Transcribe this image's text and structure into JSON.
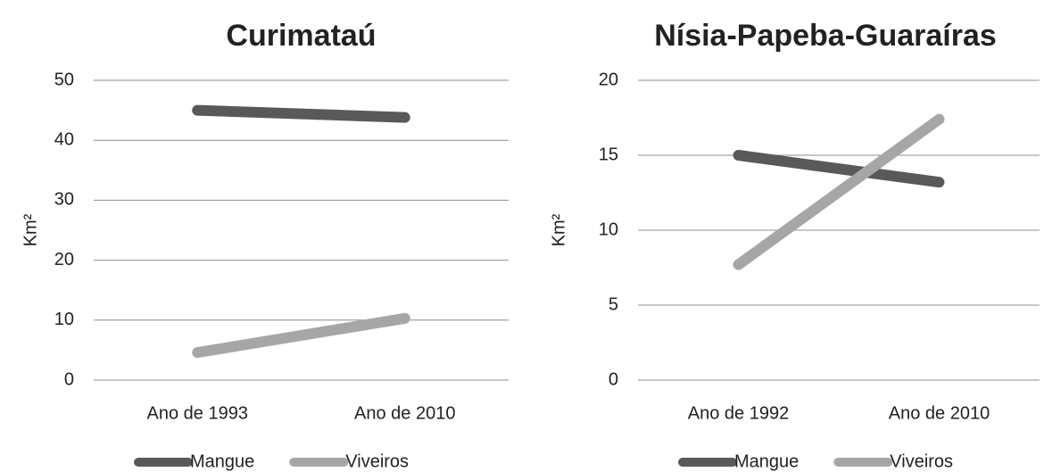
{
  "chart_data": [
    {
      "type": "line",
      "title": "Curimataú",
      "y_label": "Km²",
      "categories": [
        "Ano de 1993",
        "Ano de 2010"
      ],
      "series": [
        {
          "name": "Mangue",
          "color": "#595959",
          "values": [
            45.0,
            43.8
          ]
        },
        {
          "name": "Viveiros",
          "color": "#a6a6a6",
          "values": [
            4.6,
            10.3
          ]
        }
      ],
      "ylim": [
        0,
        50
      ],
      "yticks": [
        0,
        10,
        20,
        30,
        40,
        50
      ],
      "grid": true,
      "legend": "bottom"
    },
    {
      "type": "line",
      "title": "Nísia-Papeba-Guaraíras",
      "y_label": "Km²",
      "categories": [
        "Ano de 1992",
        "Ano de 2010"
      ],
      "series": [
        {
          "name": "Mangue",
          "color": "#595959",
          "values": [
            15.0,
            13.2
          ]
        },
        {
          "name": "Viveiros",
          "color": "#a6a6a6",
          "values": [
            7.7,
            17.4
          ]
        }
      ],
      "ylim": [
        0,
        20
      ],
      "yticks": [
        0,
        5,
        10,
        15,
        20
      ],
      "grid": true,
      "legend": "bottom"
    }
  ]
}
